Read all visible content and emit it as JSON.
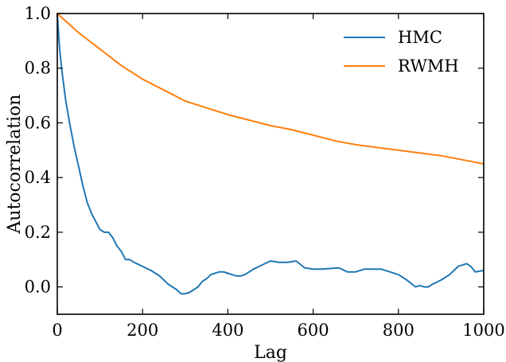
{
  "chart_data": {
    "type": "line",
    "xlabel": "Lag",
    "ylabel": "Autocorrelation",
    "xlim": [
      0,
      1000
    ],
    "ylim": [
      -0.1,
      1.0
    ],
    "x_ticks": [
      0,
      200,
      400,
      600,
      800,
      1000
    ],
    "x_tick_labels": [
      "0",
      "200",
      "400",
      "600",
      "800",
      "1000"
    ],
    "y_ticks": [
      0.0,
      0.2,
      0.4,
      0.6,
      0.8,
      1.0
    ],
    "y_tick_labels": [
      "0.0",
      "0.2",
      "0.4",
      "0.6",
      "0.8",
      "1.0"
    ],
    "grid": false,
    "legend_position": "top-right",
    "series": [
      {
        "name": "HMC",
        "color": "#1f77b4",
        "x": [
          0,
          5,
          10,
          20,
          30,
          40,
          50,
          60,
          70,
          80,
          90,
          100,
          110,
          120,
          130,
          140,
          150,
          160,
          170,
          180,
          200,
          220,
          240,
          250,
          260,
          280,
          290,
          300,
          310,
          320,
          330,
          340,
          350,
          360,
          380,
          390,
          400,
          410,
          420,
          430,
          440,
          460,
          480,
          500,
          520,
          540,
          560,
          580,
          600,
          620,
          660,
          680,
          700,
          720,
          760,
          780,
          800,
          820,
          840,
          850,
          860,
          870,
          880,
          900,
          920,
          940,
          950,
          960,
          970,
          980,
          1000
        ],
        "y": [
          1.0,
          0.88,
          0.8,
          0.68,
          0.59,
          0.51,
          0.44,
          0.37,
          0.31,
          0.27,
          0.24,
          0.21,
          0.2,
          0.2,
          0.18,
          0.15,
          0.13,
          0.1,
          0.1,
          0.09,
          0.075,
          0.06,
          0.04,
          0.025,
          0.01,
          -0.01,
          -0.025,
          -0.025,
          -0.02,
          -0.01,
          0.0,
          0.02,
          0.03,
          0.045,
          0.055,
          0.055,
          0.05,
          0.045,
          0.04,
          0.04,
          0.045,
          0.065,
          0.08,
          0.095,
          0.09,
          0.09,
          0.095,
          0.07,
          0.065,
          0.065,
          0.07,
          0.055,
          0.055,
          0.065,
          0.065,
          0.055,
          0.045,
          0.025,
          0.0,
          0.005,
          0.0,
          0.0,
          0.01,
          0.025,
          0.045,
          0.075,
          0.08,
          0.085,
          0.075,
          0.055,
          0.06
        ]
      },
      {
        "name": "RWMH",
        "color": "#ff7f0e",
        "x": [
          0,
          50,
          100,
          150,
          200,
          250,
          300,
          350,
          400,
          450,
          500,
          550,
          600,
          650,
          700,
          750,
          800,
          850,
          900,
          950,
          1000
        ],
        "y": [
          1.0,
          0.93,
          0.87,
          0.81,
          0.76,
          0.72,
          0.68,
          0.655,
          0.63,
          0.61,
          0.59,
          0.575,
          0.555,
          0.535,
          0.52,
          0.51,
          0.5,
          0.49,
          0.48,
          0.465,
          0.45
        ]
      }
    ]
  }
}
